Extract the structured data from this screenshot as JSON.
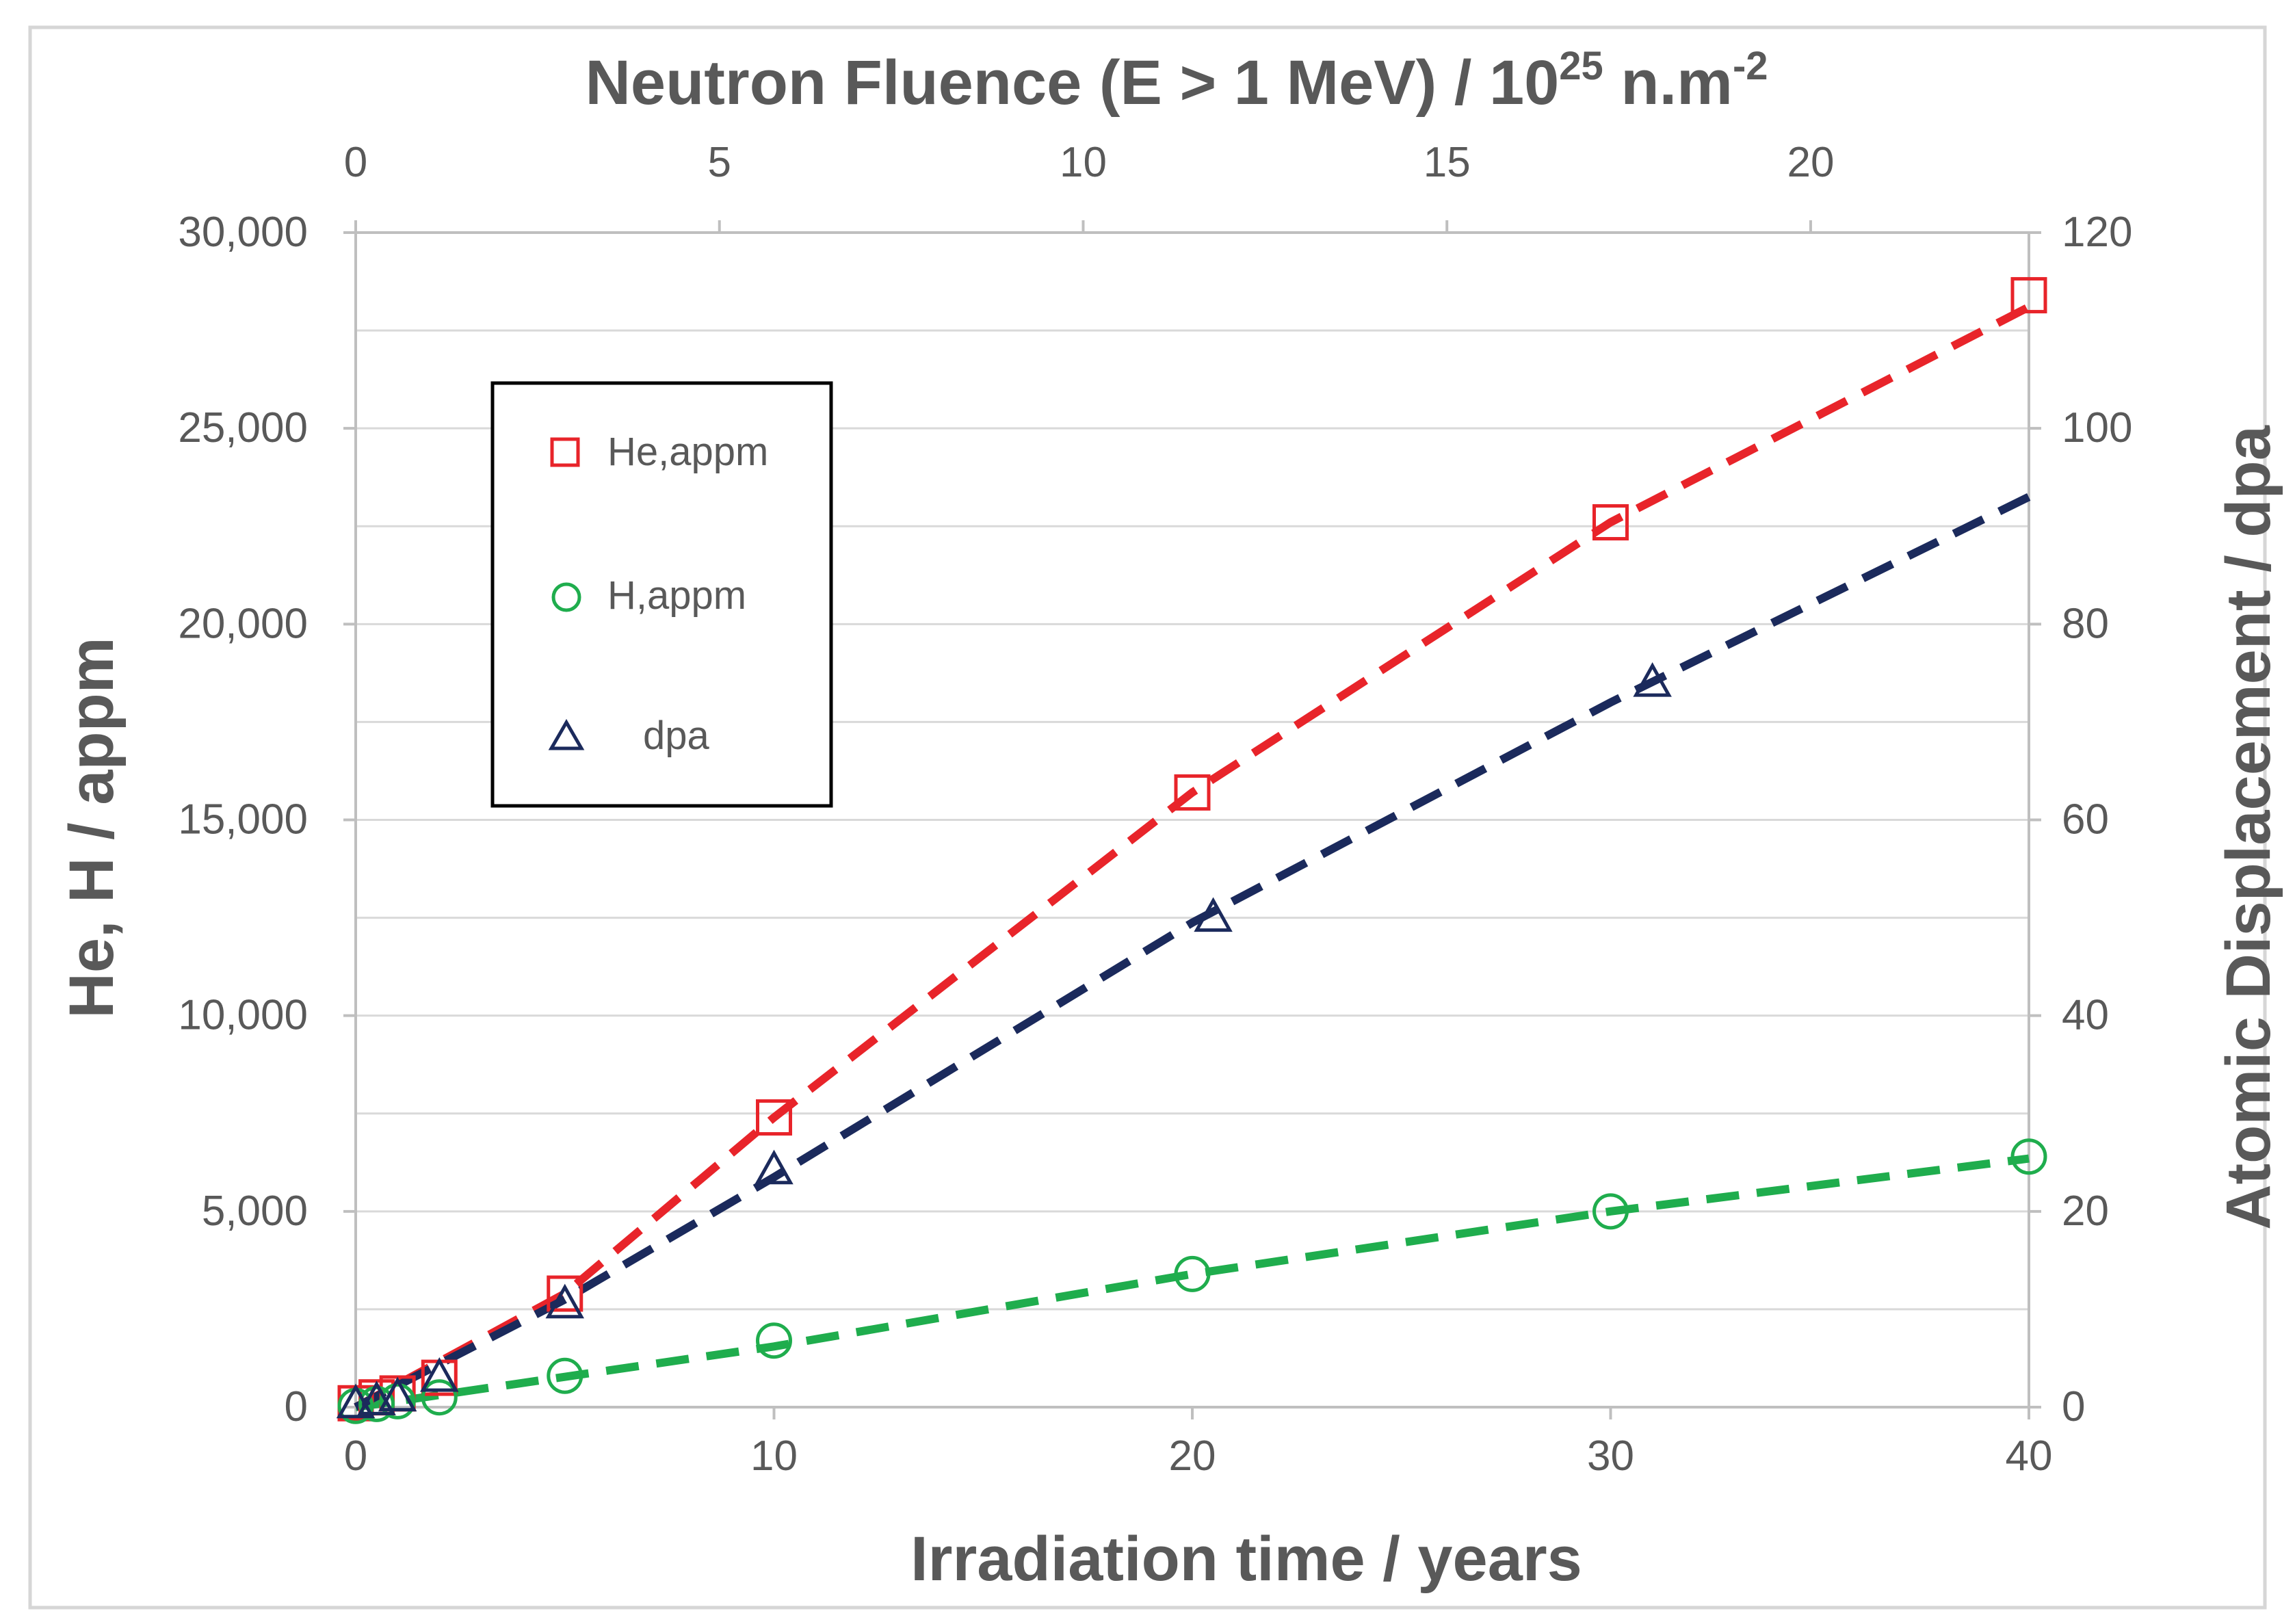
{
  "chart_data": {
    "type": "scatter",
    "x_axis": {
      "label": "Irradiation time / years",
      "range": [
        0,
        40
      ],
      "ticks": [
        "0",
        "10",
        "20",
        "30",
        "40"
      ]
    },
    "x2_axis": {
      "label_main": "Neutron Fluence (E > 1 MeV) / 10",
      "label_sup": "25",
      "label_unit": " n.m",
      "label_unit_sup": "-2",
      "range": [
        0,
        23
      ],
      "ticks": [
        "0",
        "5",
        "10",
        "15",
        "20"
      ]
    },
    "y_axis": {
      "label": "He, H / appm",
      "range": [
        0,
        30000
      ],
      "ticks": [
        "0",
        "5,000",
        "10,000",
        "15,000",
        "20,000",
        "25,000",
        "30,000"
      ]
    },
    "y2_axis": {
      "label": "Atomic Displacement / dpa",
      "range": [
        0,
        120
      ],
      "ticks": [
        "0",
        "20",
        "40",
        "60",
        "80",
        "100",
        "120"
      ]
    },
    "series": [
      {
        "name": "He,appm",
        "axis": "left",
        "marker": "square",
        "color": "#e8242a",
        "points": [
          [
            0,
            100
          ],
          [
            0.5,
            250
          ],
          [
            1,
            350
          ],
          [
            2,
            750
          ],
          [
            5,
            2900
          ],
          [
            10,
            7400
          ],
          [
            20,
            15700
          ],
          [
            30,
            22600
          ],
          [
            40,
            28400
          ]
        ],
        "trend": [
          [
            0,
            0
          ],
          [
            5,
            2900
          ],
          [
            10,
            7400
          ],
          [
            20,
            15700
          ],
          [
            30,
            22600
          ],
          [
            40,
            28100
          ]
        ]
      },
      {
        "name": "H,appm",
        "axis": "left",
        "marker": "circle",
        "color": "#1fad4d",
        "points": [
          [
            0,
            30
          ],
          [
            0.5,
            80
          ],
          [
            1,
            150
          ],
          [
            2,
            250
          ],
          [
            5,
            800
          ],
          [
            10,
            1700
          ],
          [
            20,
            3400
          ],
          [
            30,
            5000
          ],
          [
            40,
            6400
          ]
        ],
        "trend": [
          [
            0,
            0
          ],
          [
            10,
            1550
          ],
          [
            20,
            3400
          ],
          [
            30,
            5000
          ],
          [
            40,
            6350
          ]
        ]
      },
      {
        "name": "dpa",
        "axis": "right",
        "marker": "triangle",
        "color": "#1b2a5c",
        "points": [
          [
            0,
            0.3
          ],
          [
            0.5,
            0.6
          ],
          [
            1,
            1
          ],
          [
            2,
            3
          ],
          [
            5,
            10.5
          ],
          [
            10,
            24.2
          ],
          [
            20.5,
            50
          ],
          [
            31,
            74
          ]
        ],
        "trend": [
          [
            0,
            0
          ],
          [
            5,
            11
          ],
          [
            10,
            23.5
          ],
          [
            20,
            49.5
          ],
          [
            30,
            72
          ],
          [
            40,
            93
          ]
        ]
      }
    ],
    "legend": {
      "position": "upper-left",
      "entries": [
        "He,appm",
        "H,appm",
        "dpa"
      ]
    },
    "grid": {
      "horizontal": true,
      "vertical": false
    }
  }
}
